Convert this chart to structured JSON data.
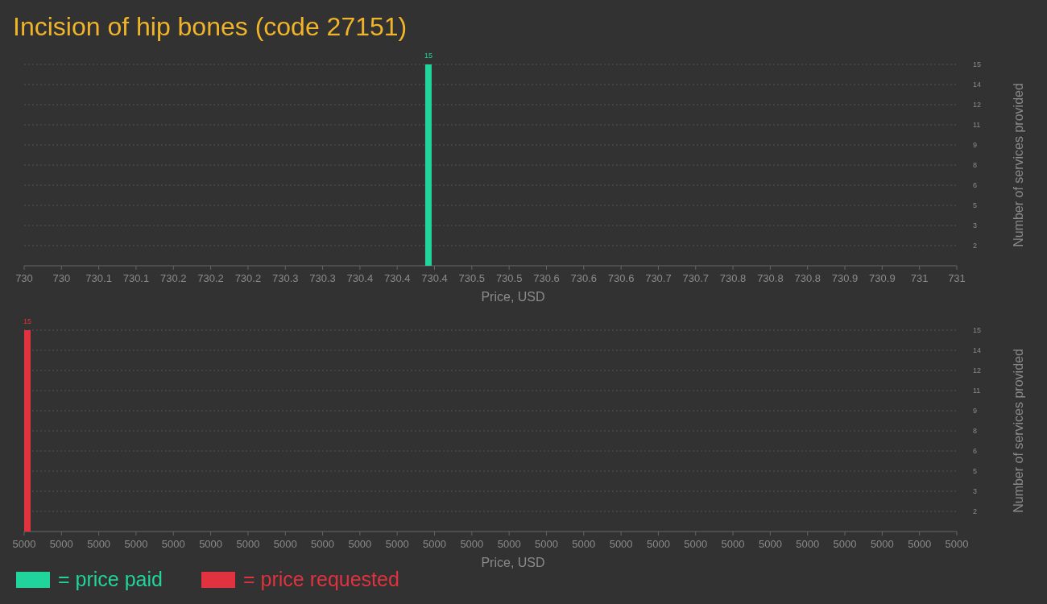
{
  "chart_data": [
    {
      "type": "bar",
      "title": "Incision of hip bones (code 27151)",
      "xlabel": "Price, USD",
      "ylabel": "Number of services provided",
      "x": [
        730.43
      ],
      "series": [
        {
          "name": "= price paid",
          "color": "#21d49b",
          "values": [
            15
          ]
        }
      ],
      "xlim": [
        730,
        731
      ],
      "xticks": [
        730,
        {
          "value": 730.04,
          "label": "730"
        },
        {
          "value": 730.08,
          "label": "730.1"
        },
        {
          "value": 730.12,
          "label": "730.1"
        },
        {
          "value": 730.16,
          "label": "730.2"
        },
        730.2,
        {
          "value": 730.24,
          "label": "730.2"
        },
        {
          "value": 730.28,
          "label": "730.3"
        },
        {
          "value": 730.32,
          "label": "730.3"
        },
        {
          "value": 730.36,
          "label": "730.4"
        },
        730.4,
        {
          "value": 730.44,
          "label": "730.4"
        },
        {
          "value": 730.48,
          "label": "730.5"
        },
        {
          "value": 730.52,
          "label": "730.5"
        },
        {
          "value": 730.56,
          "label": "730.6"
        },
        730.6,
        {
          "value": 730.64,
          "label": "730.6"
        },
        {
          "value": 730.68,
          "label": "730.7"
        },
        {
          "value": 730.72,
          "label": "730.7"
        },
        {
          "value": 730.76,
          "label": "730.8"
        },
        730.8,
        {
          "value": 730.84,
          "label": "730.8"
        },
        {
          "value": 730.88,
          "label": "730.9"
        },
        {
          "value": 730.92,
          "label": "730.9"
        },
        {
          "value": 730.96,
          "label": "731"
        },
        731
      ],
      "ylim": [
        0,
        15
      ],
      "yticks": [
        {
          "value": 1.5,
          "label": "2"
        },
        3,
        {
          "value": 4.5,
          "label": "5"
        },
        6,
        {
          "value": 7.5,
          "label": "8"
        },
        9,
        {
          "value": 10.5,
          "label": "11"
        },
        12,
        {
          "value": 13.5,
          "label": "14"
        },
        15
      ],
      "grid": "y",
      "data_labels": true,
      "legend": "bottom left"
    },
    {
      "type": "bar",
      "xlabel": "Price, USD",
      "ylabel": "Number of services provided",
      "x": [
        5000
      ],
      "series": [
        {
          "name": "= price requested",
          "color": "#e0323f",
          "values": [
            15
          ]
        }
      ],
      "xlim": [
        5000,
        5000.4
      ],
      "xticks": [
        5000,
        {
          "value": 5000.016,
          "label": "5000"
        },
        {
          "value": 5000.032,
          "label": "5000"
        },
        {
          "value": 5000.048,
          "label": "5000"
        },
        {
          "value": 5000.064,
          "label": "5000"
        },
        {
          "value": 5000.08,
          "label": "5000"
        },
        {
          "value": 5000.096,
          "label": "5000"
        },
        {
          "value": 5000.112,
          "label": "5000"
        },
        {
          "value": 5000.128,
          "label": "5000"
        },
        {
          "value": 5000.144,
          "label": "5000"
        },
        {
          "value": 5000.16,
          "label": "5000"
        },
        {
          "value": 5000.176,
          "label": "5000"
        },
        {
          "value": 5000.192,
          "label": "5000"
        },
        {
          "value": 5000.208,
          "label": "5000"
        },
        {
          "value": 5000.224,
          "label": "5000"
        },
        {
          "value": 5000.24,
          "label": "5000"
        },
        {
          "value": 5000.256,
          "label": "5000"
        },
        {
          "value": 5000.272,
          "label": "5000"
        },
        {
          "value": 5000.288,
          "label": "5000"
        },
        {
          "value": 5000.304,
          "label": "5000"
        },
        {
          "value": 5000.32,
          "label": "5000"
        },
        {
          "value": 5000.336,
          "label": "5000"
        },
        {
          "value": 5000.352,
          "label": "5000"
        },
        {
          "value": 5000.368,
          "label": "5000"
        },
        {
          "value": 5000.384,
          "label": "5000"
        },
        {
          "value": 5000.4,
          "label": "5000"
        }
      ],
      "ylim": [
        0,
        15
      ],
      "yticks": [
        {
          "value": 1.5,
          "label": "2"
        },
        3,
        {
          "value": 4.5,
          "label": "5"
        },
        6,
        {
          "value": 7.5,
          "label": "8"
        },
        9,
        {
          "value": 10.5,
          "label": "11"
        },
        12,
        {
          "value": 13.5,
          "label": "14"
        },
        15
      ],
      "grid": "y",
      "data_labels": true,
      "legend": "bottom left"
    }
  ]
}
